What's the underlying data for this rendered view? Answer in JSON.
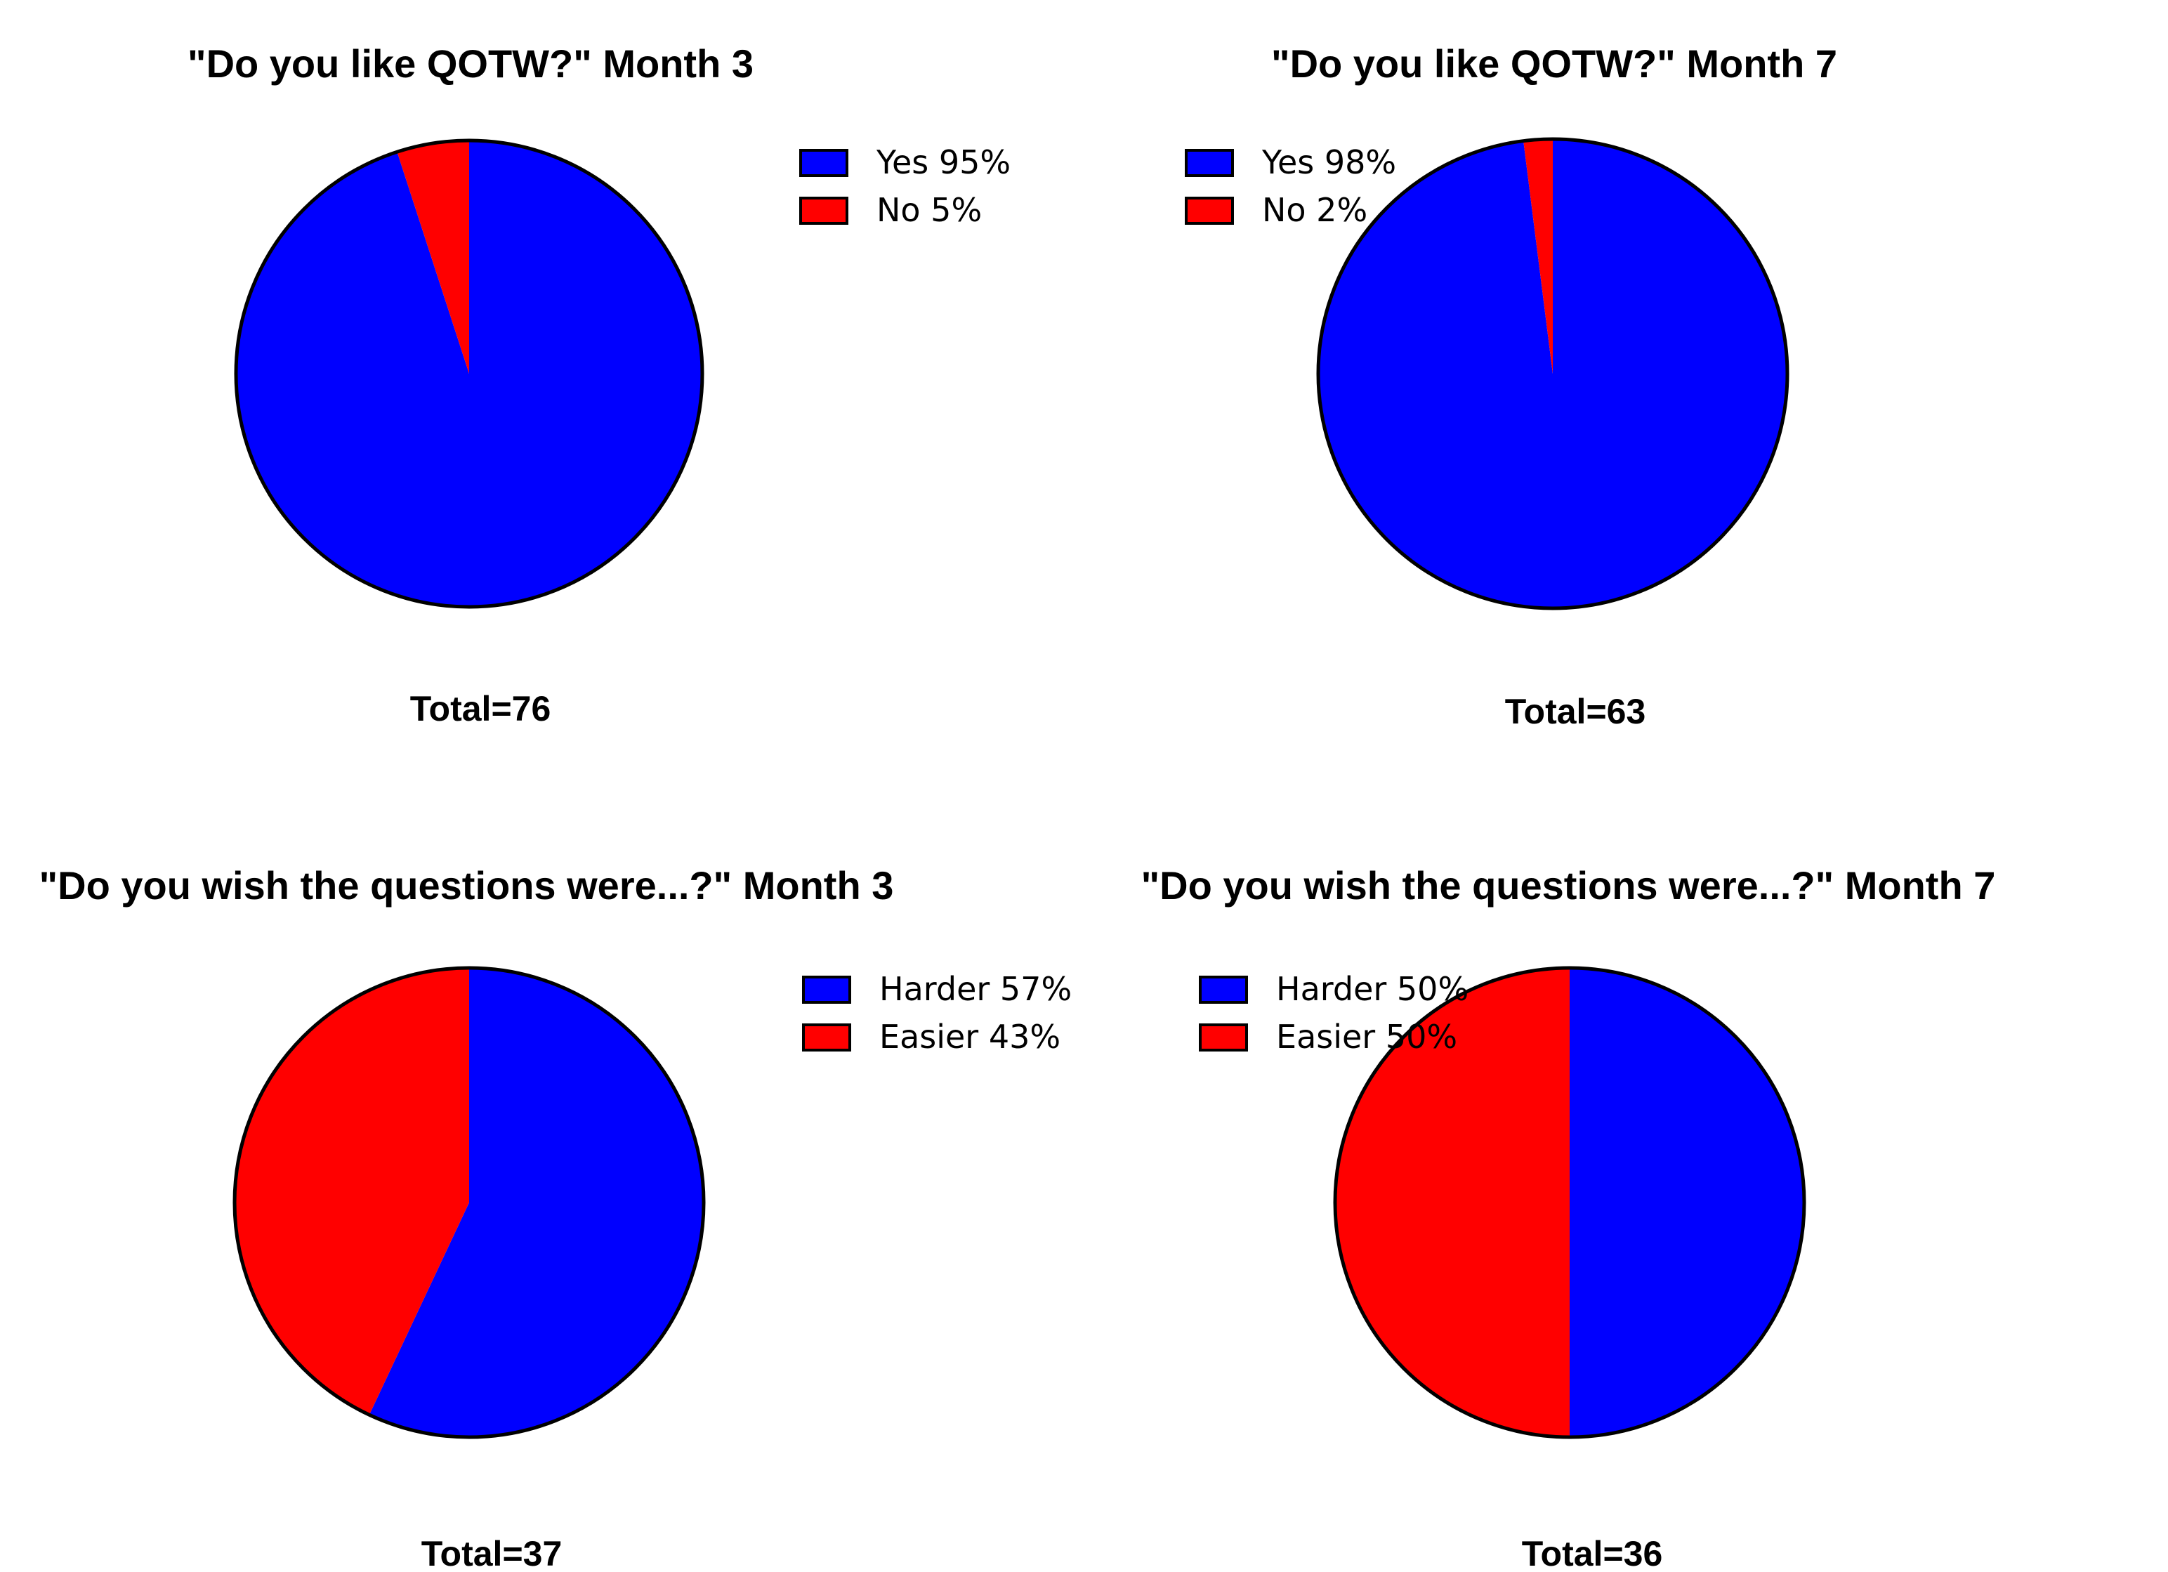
{
  "chart_data": [
    {
      "type": "pie",
      "title": "\"Do you like QOTW?\" Month 3",
      "categories": [
        "Yes",
        "No"
      ],
      "values": [
        95,
        5
      ],
      "legend": [
        "Yes 95%",
        "No 5%"
      ],
      "colors": [
        "#0000ff",
        "#ff0000"
      ],
      "total": "Total=76",
      "legend_position": "right"
    },
    {
      "type": "pie",
      "title": "\"Do you like QOTW?\" Month 7",
      "categories": [
        "Yes",
        "No"
      ],
      "values": [
        98,
        2
      ],
      "legend": [
        "Yes 98%",
        "No 2%"
      ],
      "colors": [
        "#0000ff",
        "#ff0000"
      ],
      "total": "Total=63",
      "legend_position": "right"
    },
    {
      "type": "pie",
      "title": "\"Do you wish the questions were...?\" Month 3",
      "categories": [
        "Harder",
        "Easier"
      ],
      "values": [
        57,
        43
      ],
      "legend": [
        "Harder 57%",
        "Easier 43%"
      ],
      "colors": [
        "#0000ff",
        "#ff0000"
      ],
      "total": "Total=37",
      "legend_position": "right"
    },
    {
      "type": "pie",
      "title": "\"Do you wish the questions were...?\" Month 7",
      "categories": [
        "Harder",
        "Easier"
      ],
      "values": [
        50,
        50
      ],
      "legend": [
        "Harder 50%",
        "Easier 50%"
      ],
      "colors": [
        "#0000ff",
        "#ff0000"
      ],
      "total": "Total=36",
      "legend_position": "right"
    }
  ]
}
